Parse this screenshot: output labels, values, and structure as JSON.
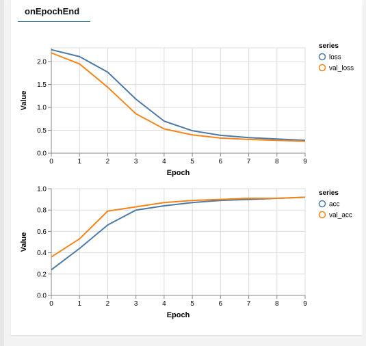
{
  "panel": {
    "title": "onEpochEnd"
  },
  "colors": {
    "loss": "#4c78a8",
    "val_loss": "#f58518",
    "acc": "#4c78a8",
    "val_acc": "#f58518",
    "grid": "#dddddd",
    "axis": "#888888"
  },
  "chart_data": [
    {
      "type": "line",
      "xlabel": "Epoch",
      "ylabel": "Value",
      "x": [
        0,
        1,
        2,
        3,
        4,
        5,
        6,
        7,
        8,
        9
      ],
      "xticks": [
        "0",
        "1",
        "2",
        "3",
        "4",
        "5",
        "6",
        "7",
        "8",
        "9"
      ],
      "yticks": [
        "0.0",
        "0.5",
        "1.0",
        "1.5",
        "2.0"
      ],
      "ylim": [
        0,
        2.3
      ],
      "grid": true,
      "legend": {
        "title": "series",
        "position": "right"
      },
      "series": [
        {
          "name": "loss",
          "values": [
            2.26,
            2.11,
            1.77,
            1.18,
            0.7,
            0.49,
            0.39,
            0.34,
            0.31,
            0.28
          ]
        },
        {
          "name": "val_loss",
          "values": [
            2.19,
            1.95,
            1.44,
            0.86,
            0.53,
            0.4,
            0.33,
            0.3,
            0.28,
            0.26
          ]
        }
      ]
    },
    {
      "type": "line",
      "xlabel": "Epoch",
      "ylabel": "Value",
      "x": [
        0,
        1,
        2,
        3,
        4,
        5,
        6,
        7,
        8,
        9
      ],
      "xticks": [
        "0",
        "1",
        "2",
        "3",
        "4",
        "5",
        "6",
        "7",
        "8",
        "9"
      ],
      "yticks": [
        "0.0",
        "0.2",
        "0.4",
        "0.6",
        "0.8",
        "1.0"
      ],
      "ylim": [
        0,
        1.0
      ],
      "grid": true,
      "legend": {
        "title": "series",
        "position": "right"
      },
      "series": [
        {
          "name": "acc",
          "values": [
            0.24,
            0.44,
            0.66,
            0.8,
            0.84,
            0.87,
            0.89,
            0.9,
            0.91,
            0.92
          ]
        },
        {
          "name": "val_acc",
          "values": [
            0.36,
            0.53,
            0.79,
            0.83,
            0.87,
            0.89,
            0.9,
            0.91,
            0.91,
            0.92
          ]
        }
      ]
    }
  ]
}
